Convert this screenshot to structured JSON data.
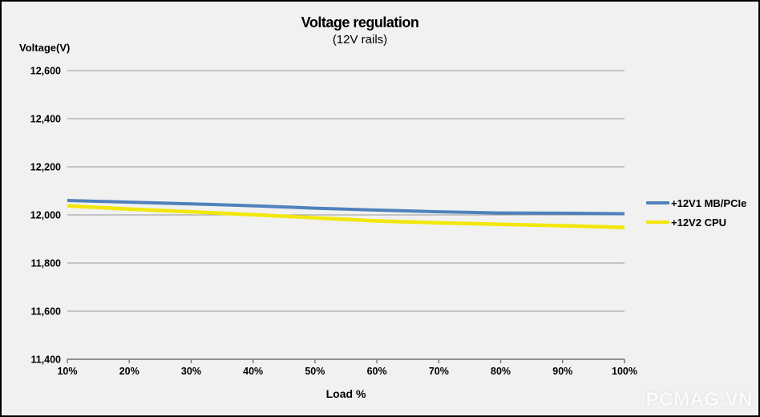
{
  "watermark": "PCMAG.VN",
  "colors": {
    "background": "#f1f1f1",
    "frame_border": "#000000",
    "gridline": "#999999",
    "axis_line": "#737373",
    "text": "#000000",
    "watermark_text": "#fbfbfb",
    "series_blue": "#4f81bd",
    "series_yellow": "#f2e70a"
  },
  "chart_data": {
    "type": "line",
    "title": "Voltage regulation",
    "subtitle": "(12V rails)",
    "ylabel": "Voltage(V)",
    "xlabel": "Load %",
    "categories": [
      "10%",
      "20%",
      "30%",
      "40%",
      "50%",
      "60%",
      "70%",
      "80%",
      "90%",
      "100%"
    ],
    "yticks": [
      12600,
      12400,
      12200,
      12000,
      11800,
      11600,
      11400
    ],
    "ytick_labels": [
      "12,600",
      "12,400",
      "12,200",
      "12,000",
      "11,800",
      "11,600",
      "11,400"
    ],
    "ylim": [
      11400,
      12600
    ],
    "grid": true,
    "legend_position": "right",
    "series": [
      {
        "name": "+12V1 MB/PCIe",
        "color": "#4f81bd",
        "values": [
          12060,
          12053,
          12046,
          12038,
          12028,
          12020,
          12013,
          12008,
          12007,
          12005
        ]
      },
      {
        "name": "+12V2 CPU",
        "color": "#f2e70a",
        "values": [
          12038,
          12024,
          12013,
          12001,
          11988,
          11975,
          11967,
          11961,
          11955,
          11948
        ]
      }
    ]
  }
}
